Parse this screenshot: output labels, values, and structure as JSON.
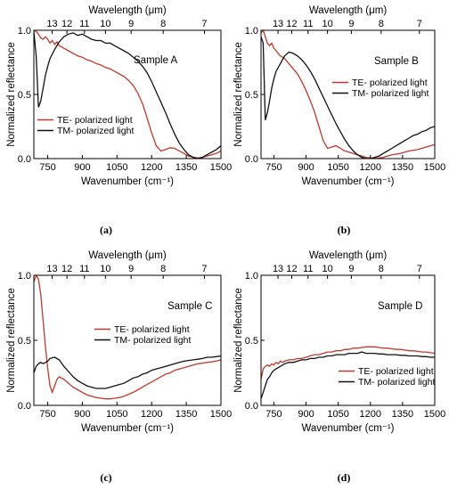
{
  "colors": {
    "te": "#c0392b",
    "tm": "#111111",
    "axis": "#000000"
  },
  "chart_data": [
    {
      "type": "line",
      "sample_label": "Sample A",
      "caption": "(a)",
      "xlabel": "Wavenumber (cm⁻¹)",
      "x2label": "Wavelength (μm)",
      "ylabel": "Normalized reflectance",
      "xlim": [
        690,
        1500
      ],
      "ylim": [
        0,
        1
      ],
      "x_ticks": [
        "750",
        "900",
        "1050",
        "1200",
        "1350",
        "1500"
      ],
      "y_ticks": [
        "0.0",
        "0.5",
        "1.0"
      ],
      "x2_ticks": [
        "13",
        "12",
        "11",
        "10",
        "9",
        "8",
        "7"
      ],
      "legend_position": "bottom-left",
      "series": [
        {
          "name": "TE- polarized light",
          "color": "#c0392b",
          "x": [
            690,
            700,
            710,
            720,
            730,
            740,
            750,
            760,
            770,
            780,
            790,
            800,
            820,
            840,
            860,
            880,
            900,
            920,
            940,
            960,
            980,
            1000,
            1020,
            1040,
            1060,
            1080,
            1100,
            1120,
            1140,
            1160,
            1180,
            1200,
            1220,
            1240,
            1260,
            1280,
            1300,
            1320,
            1340,
            1360,
            1380,
            1400,
            1420,
            1440,
            1460,
            1480,
            1500
          ],
          "y": [
            1.0,
            0.99,
            0.97,
            0.94,
            0.93,
            0.95,
            0.93,
            0.9,
            0.92,
            0.89,
            0.91,
            0.88,
            0.86,
            0.84,
            0.82,
            0.8,
            0.79,
            0.77,
            0.76,
            0.74,
            0.73,
            0.71,
            0.7,
            0.68,
            0.66,
            0.64,
            0.61,
            0.57,
            0.51,
            0.43,
            0.32,
            0.2,
            0.1,
            0.06,
            0.07,
            0.085,
            0.08,
            0.06,
            0.04,
            0.02,
            0.01,
            0.005,
            0.01,
            0.02,
            0.03,
            0.04,
            0.06
          ]
        },
        {
          "name": "TM- polarized light",
          "color": "#111111",
          "x": [
            690,
            700,
            710,
            720,
            730,
            740,
            750,
            760,
            780,
            800,
            820,
            840,
            860,
            880,
            900,
            920,
            940,
            960,
            980,
            1000,
            1020,
            1040,
            1060,
            1080,
            1100,
            1120,
            1140,
            1160,
            1180,
            1200,
            1220,
            1240,
            1260,
            1280,
            1300,
            1320,
            1340,
            1360,
            1380,
            1400,
            1420,
            1440,
            1460,
            1480,
            1500
          ],
          "y": [
            0.99,
            0.8,
            0.4,
            0.45,
            0.55,
            0.65,
            0.72,
            0.78,
            0.85,
            0.91,
            0.95,
            0.97,
            0.98,
            0.96,
            0.97,
            0.95,
            0.93,
            0.92,
            0.92,
            0.9,
            0.9,
            0.88,
            0.86,
            0.84,
            0.82,
            0.79,
            0.76,
            0.72,
            0.67,
            0.6,
            0.52,
            0.44,
            0.36,
            0.27,
            0.19,
            0.12,
            0.07,
            0.03,
            0.01,
            0.0,
            0.01,
            0.03,
            0.05,
            0.07,
            0.1
          ]
        }
      ]
    },
    {
      "type": "line",
      "sample_label": "Sample B",
      "caption": "(b)",
      "xlabel": "Wavenumber (cm⁻¹)",
      "x2label": "Wavelength (μm)",
      "ylabel": "Normalized reflectance",
      "xlim": [
        690,
        1500
      ],
      "ylim": [
        0,
        1
      ],
      "x_ticks": [
        "750",
        "900",
        "1050",
        "1200",
        "1350",
        "1500"
      ],
      "y_ticks": [
        "0.0",
        "0.5",
        "1.0"
      ],
      "x2_ticks": [
        "13",
        "12",
        "11",
        "10",
        "9",
        "8",
        "7"
      ],
      "legend_position": "middle-right",
      "series": [
        {
          "name": "TE- polarized light",
          "color": "#c0392b",
          "x": [
            690,
            700,
            710,
            720,
            730,
            740,
            750,
            760,
            770,
            780,
            790,
            800,
            820,
            840,
            860,
            880,
            900,
            920,
            940,
            960,
            980,
            1000,
            1020,
            1040,
            1060,
            1080,
            1100,
            1120,
            1140,
            1160,
            1180,
            1200,
            1220,
            1240,
            1260,
            1280,
            1300,
            1320,
            1340,
            1360,
            1380,
            1400,
            1420,
            1440,
            1460,
            1480,
            1500
          ],
          "y": [
            0.98,
            1.0,
            0.95,
            0.9,
            0.88,
            0.9,
            0.86,
            0.84,
            0.82,
            0.8,
            0.79,
            0.78,
            0.74,
            0.7,
            0.66,
            0.6,
            0.53,
            0.45,
            0.36,
            0.25,
            0.14,
            0.08,
            0.09,
            0.1,
            0.08,
            0.06,
            0.05,
            0.04,
            0.03,
            0.02,
            0.01,
            0.005,
            0.0,
            0.005,
            0.01,
            0.02,
            0.03,
            0.035,
            0.04,
            0.05,
            0.06,
            0.065,
            0.07,
            0.08,
            0.09,
            0.1,
            0.11
          ]
        },
        {
          "name": "TM- polarized light",
          "color": "#111111",
          "x": [
            690,
            700,
            710,
            720,
            730,
            740,
            750,
            760,
            780,
            800,
            820,
            840,
            860,
            880,
            900,
            920,
            940,
            960,
            980,
            1000,
            1020,
            1040,
            1060,
            1080,
            1100,
            1120,
            1140,
            1160,
            1180,
            1200,
            1220,
            1240,
            1260,
            1280,
            1300,
            1320,
            1340,
            1360,
            1380,
            1400,
            1420,
            1440,
            1460,
            1480,
            1500
          ],
          "y": [
            0.95,
            0.9,
            0.3,
            0.36,
            0.45,
            0.55,
            0.62,
            0.68,
            0.74,
            0.8,
            0.83,
            0.82,
            0.8,
            0.77,
            0.73,
            0.68,
            0.62,
            0.55,
            0.48,
            0.41,
            0.34,
            0.27,
            0.21,
            0.15,
            0.1,
            0.06,
            0.03,
            0.01,
            0.0,
            0.0,
            0.01,
            0.02,
            0.04,
            0.06,
            0.08,
            0.1,
            0.12,
            0.14,
            0.16,
            0.18,
            0.19,
            0.21,
            0.22,
            0.24,
            0.25
          ]
        }
      ]
    },
    {
      "type": "line",
      "sample_label": "Sample C",
      "caption": "(c)",
      "xlabel": "Wavenumber (cm⁻¹)",
      "x2label": "Wavelength (μm)",
      "ylabel": "Normalized reflectance",
      "xlim": [
        690,
        1500
      ],
      "ylim": [
        0,
        1
      ],
      "x_ticks": [
        "750",
        "900",
        "1050",
        "1200",
        "1350",
        "1500"
      ],
      "y_ticks": [
        "0.0",
        "0.5",
        "1.0"
      ],
      "x2_ticks": [
        "13",
        "12",
        "11",
        "10",
        "9",
        "8",
        "7"
      ],
      "legend_position": "middle-right",
      "series": [
        {
          "name": "TE- polarized light",
          "color": "#c0392b",
          "x": [
            690,
            700,
            710,
            720,
            730,
            740,
            750,
            760,
            770,
            780,
            790,
            800,
            820,
            840,
            860,
            880,
            900,
            920,
            940,
            960,
            980,
            1000,
            1020,
            1040,
            1060,
            1080,
            1100,
            1120,
            1140,
            1160,
            1180,
            1200,
            1220,
            1240,
            1260,
            1280,
            1300,
            1320,
            1340,
            1360,
            1380,
            1400,
            1420,
            1440,
            1460,
            1480,
            1500
          ],
          "y": [
            0.95,
            1.0,
            0.97,
            0.85,
            0.65,
            0.45,
            0.28,
            0.15,
            0.1,
            0.15,
            0.2,
            0.22,
            0.2,
            0.17,
            0.14,
            0.12,
            0.1,
            0.08,
            0.07,
            0.06,
            0.055,
            0.05,
            0.05,
            0.055,
            0.06,
            0.07,
            0.085,
            0.1,
            0.12,
            0.14,
            0.16,
            0.18,
            0.2,
            0.22,
            0.24,
            0.25,
            0.27,
            0.28,
            0.29,
            0.3,
            0.31,
            0.32,
            0.325,
            0.33,
            0.335,
            0.34,
            0.35
          ]
        },
        {
          "name": "TM- polarized light",
          "color": "#111111",
          "x": [
            690,
            700,
            710,
            720,
            730,
            740,
            750,
            760,
            780,
            800,
            820,
            840,
            860,
            880,
            900,
            920,
            940,
            960,
            980,
            1000,
            1020,
            1040,
            1060,
            1080,
            1100,
            1120,
            1140,
            1160,
            1180,
            1200,
            1220,
            1240,
            1260,
            1280,
            1300,
            1320,
            1340,
            1360,
            1380,
            1400,
            1420,
            1440,
            1460,
            1480,
            1500
          ],
          "y": [
            0.25,
            0.3,
            0.32,
            0.33,
            0.32,
            0.33,
            0.34,
            0.36,
            0.37,
            0.35,
            0.3,
            0.26,
            0.22,
            0.19,
            0.17,
            0.15,
            0.14,
            0.13,
            0.13,
            0.13,
            0.14,
            0.15,
            0.16,
            0.17,
            0.19,
            0.21,
            0.22,
            0.24,
            0.25,
            0.27,
            0.28,
            0.29,
            0.3,
            0.31,
            0.32,
            0.33,
            0.34,
            0.345,
            0.35,
            0.355,
            0.36,
            0.37,
            0.37,
            0.375,
            0.38
          ]
        }
      ]
    },
    {
      "type": "line",
      "sample_label": "Sample D",
      "caption": "(d)",
      "xlabel": "Wavenumber (cm⁻¹)",
      "x2label": "Wavelength (μm)",
      "ylabel": "Normalized reflectance",
      "xlim": [
        690,
        1500
      ],
      "ylim": [
        0,
        1
      ],
      "x_ticks": [
        "750",
        "900",
        "1050",
        "1200",
        "1350",
        "1500"
      ],
      "y_ticks": [
        "0.0",
        "0.5",
        "1.0"
      ],
      "x2_ticks": [
        "13",
        "12",
        "11",
        "10",
        "9",
        "8",
        "7"
      ],
      "legend_position": "lower-right",
      "series": [
        {
          "name": "TE- polarized light",
          "color": "#c0392b",
          "x": [
            690,
            700,
            710,
            720,
            730,
            740,
            750,
            760,
            770,
            780,
            790,
            800,
            820,
            840,
            860,
            880,
            900,
            920,
            940,
            960,
            980,
            1000,
            1020,
            1040,
            1060,
            1080,
            1100,
            1120,
            1140,
            1160,
            1180,
            1200,
            1220,
            1240,
            1260,
            1280,
            1300,
            1320,
            1340,
            1360,
            1380,
            1400,
            1420,
            1440,
            1460,
            1480,
            1500
          ],
          "y": [
            0.2,
            0.28,
            0.3,
            0.31,
            0.3,
            0.32,
            0.31,
            0.33,
            0.32,
            0.34,
            0.33,
            0.34,
            0.35,
            0.35,
            0.36,
            0.36,
            0.37,
            0.38,
            0.39,
            0.39,
            0.4,
            0.41,
            0.41,
            0.42,
            0.42,
            0.43,
            0.43,
            0.44,
            0.44,
            0.445,
            0.45,
            0.45,
            0.45,
            0.445,
            0.44,
            0.44,
            0.435,
            0.43,
            0.43,
            0.425,
            0.42,
            0.42,
            0.415,
            0.41,
            0.41,
            0.405,
            0.4
          ]
        },
        {
          "name": "TM- polarized light",
          "color": "#111111",
          "x": [
            690,
            700,
            710,
            720,
            730,
            740,
            750,
            760,
            780,
            800,
            820,
            840,
            860,
            880,
            900,
            920,
            940,
            960,
            980,
            1000,
            1020,
            1040,
            1060,
            1080,
            1100,
            1120,
            1140,
            1160,
            1180,
            1200,
            1220,
            1240,
            1260,
            1280,
            1300,
            1320,
            1340,
            1360,
            1380,
            1400,
            1420,
            1440,
            1460,
            1480,
            1500
          ],
          "y": [
            0.05,
            0.1,
            0.15,
            0.2,
            0.22,
            0.25,
            0.27,
            0.28,
            0.3,
            0.32,
            0.33,
            0.33,
            0.34,
            0.35,
            0.35,
            0.36,
            0.36,
            0.37,
            0.37,
            0.38,
            0.38,
            0.39,
            0.39,
            0.39,
            0.4,
            0.4,
            0.4,
            0.41,
            0.4,
            0.4,
            0.4,
            0.395,
            0.395,
            0.39,
            0.39,
            0.39,
            0.385,
            0.385,
            0.38,
            0.38,
            0.38,
            0.375,
            0.375,
            0.37,
            0.37
          ]
        }
      ]
    }
  ]
}
